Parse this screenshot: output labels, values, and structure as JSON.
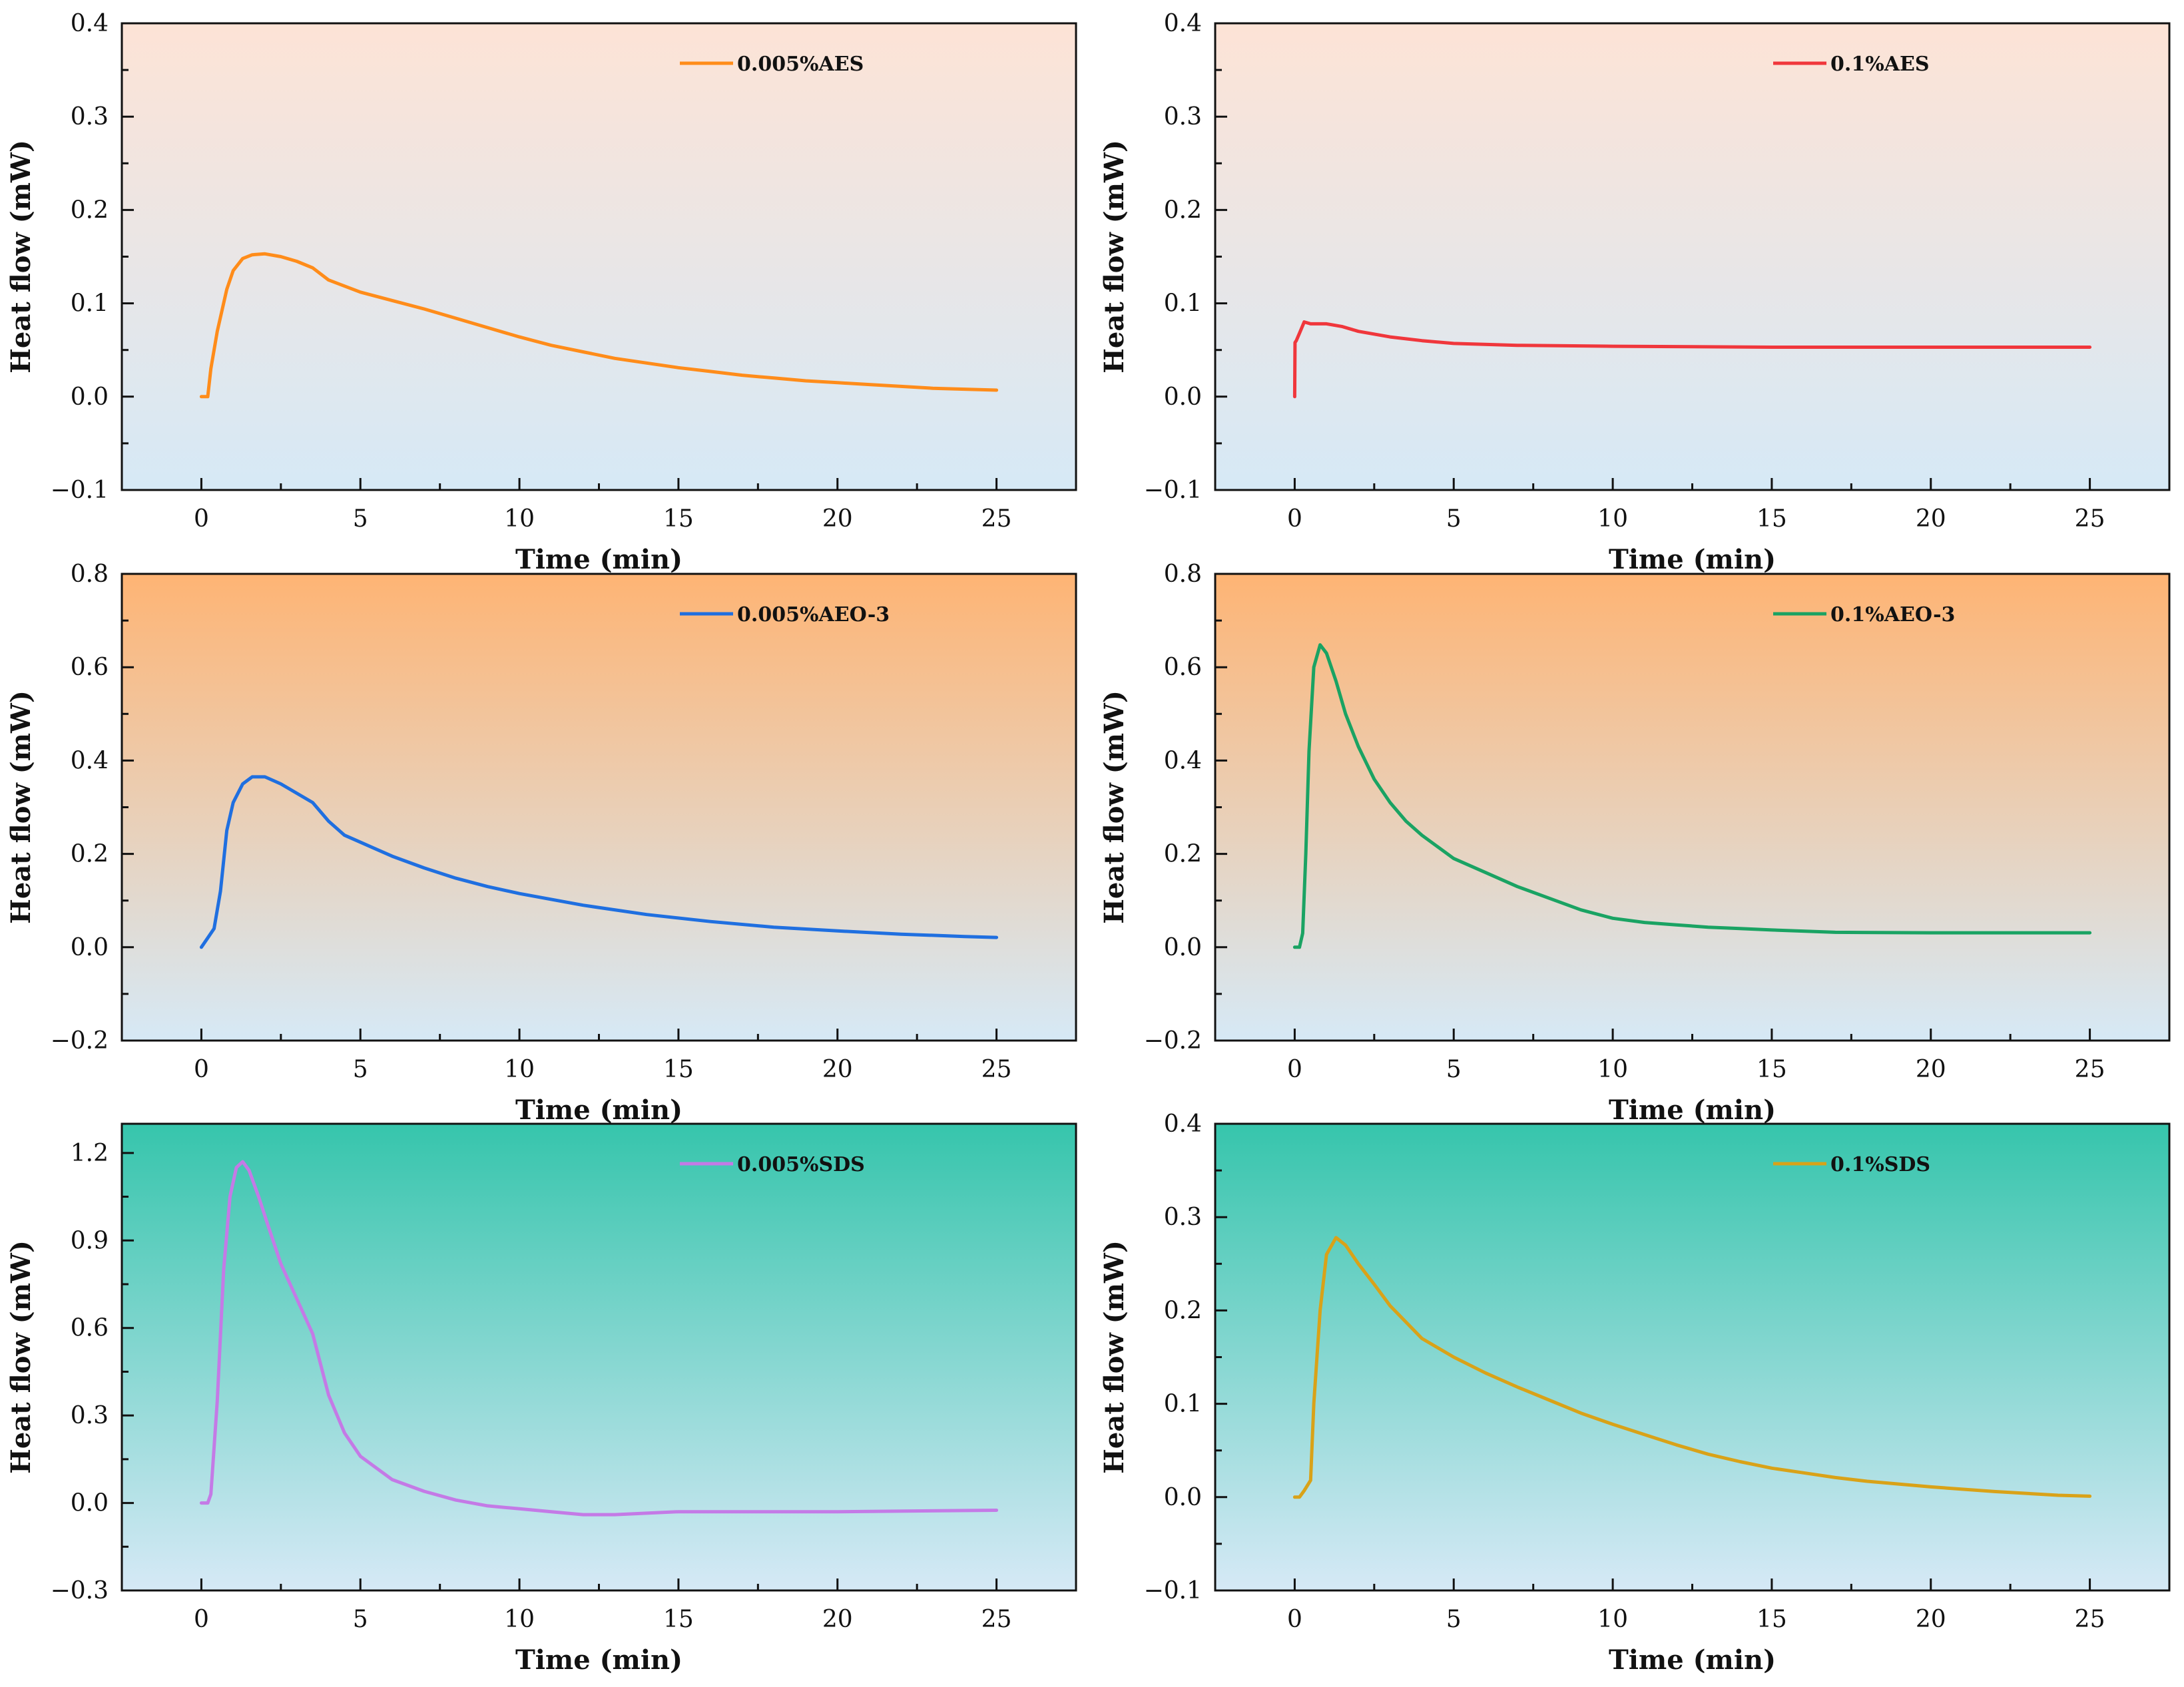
{
  "chart_data": [
    {
      "type": "line",
      "xlabel": "Time (min)",
      "ylabel": "Heat flow (mW)",
      "xlim": [
        -2.5,
        27.5
      ],
      "ylim": [
        -0.1,
        0.4
      ],
      "xticks": [
        0,
        5,
        10,
        15,
        20,
        25
      ],
      "yticks": [
        -0.1,
        0.0,
        0.1,
        0.2,
        0.3,
        0.4
      ],
      "ytick_labels": [
        "−0.1",
        "0.0",
        "0.1",
        "0.2",
        "0.3",
        "0.4"
      ],
      "background": {
        "top": "#fde3d6",
        "bottom": "#d6e9f6"
      },
      "legend_position": "top-right",
      "series": [
        {
          "name": "0.005%AES",
          "color": "#ff8c1a",
          "x": [
            0,
            0.2,
            0.3,
            0.5,
            0.8,
            1.0,
            1.3,
            1.6,
            2.0,
            2.5,
            3.0,
            3.5,
            4.0,
            5.0,
            6.0,
            7.0,
            8.0,
            9.0,
            10.0,
            11.0,
            12.0,
            13.0,
            14.0,
            15.0,
            16.0,
            17.0,
            18.0,
            19.0,
            20.0,
            21.0,
            22.0,
            23.0,
            24.0,
            25.0
          ],
          "y": [
            0.0,
            0.0,
            0.03,
            0.07,
            0.115,
            0.135,
            0.148,
            0.152,
            0.153,
            0.15,
            0.145,
            0.138,
            0.125,
            0.112,
            0.103,
            0.094,
            0.084,
            0.074,
            0.064,
            0.055,
            0.048,
            0.041,
            0.036,
            0.031,
            0.027,
            0.023,
            0.02,
            0.017,
            0.015,
            0.013,
            0.011,
            0.009,
            0.008,
            0.007
          ]
        }
      ]
    },
    {
      "type": "line",
      "xlabel": "Time (min)",
      "ylabel": "Heat flow (mW)",
      "xlim": [
        -2.5,
        27.5
      ],
      "ylim": [
        -0.1,
        0.4
      ],
      "xticks": [
        0,
        5,
        10,
        15,
        20,
        25
      ],
      "yticks": [
        -0.1,
        0.0,
        0.1,
        0.2,
        0.3,
        0.4
      ],
      "ytick_labels": [
        "−0.1",
        "0.0",
        "0.1",
        "0.2",
        "0.3",
        "0.4"
      ],
      "background": {
        "top": "#fde3d6",
        "bottom": "#d6e9f6"
      },
      "legend_position": "top-right",
      "series": [
        {
          "name": "0.1%AES",
          "color": "#f0373c",
          "x": [
            0,
            0.01,
            0.05,
            0.15,
            0.3,
            0.5,
            1.0,
            1.5,
            2.0,
            3.0,
            4.0,
            5.0,
            7.0,
            10.0,
            15.0,
            20.0,
            25.0
          ],
          "y": [
            0.0,
            0.058,
            0.06,
            0.068,
            0.08,
            0.078,
            0.078,
            0.075,
            0.07,
            0.064,
            0.06,
            0.057,
            0.055,
            0.054,
            0.053,
            0.053,
            0.053
          ]
        }
      ]
    },
    {
      "type": "line",
      "xlabel": "Time (min)",
      "ylabel": "Heat flow (mW)",
      "xlim": [
        -2.5,
        27.5
      ],
      "ylim": [
        -0.2,
        0.8
      ],
      "xticks": [
        0,
        5,
        10,
        15,
        20,
        25
      ],
      "yticks": [
        -0.2,
        0.0,
        0.2,
        0.4,
        0.6,
        0.8
      ],
      "ytick_labels": [
        "−0.2",
        "0.0",
        "0.2",
        "0.4",
        "0.6",
        "0.8"
      ],
      "background": {
        "top": "#feb474",
        "bottom": "#d6e9f6"
      },
      "legend_position": "top-right",
      "series": [
        {
          "name": "0.005%AEO-3",
          "color": "#1f6fe0",
          "x": [
            0,
            0.2,
            0.4,
            0.6,
            0.8,
            1.0,
            1.3,
            1.6,
            2.0,
            2.5,
            3.0,
            3.5,
            4.0,
            4.5,
            5.0,
            6.0,
            7.0,
            8.0,
            9.0,
            10.0,
            12.0,
            14.0,
            16.0,
            18.0,
            20.0,
            22.0,
            24.0,
            25.0
          ],
          "y": [
            0.0,
            0.02,
            0.04,
            0.12,
            0.25,
            0.31,
            0.35,
            0.365,
            0.365,
            0.35,
            0.33,
            0.31,
            0.27,
            0.24,
            0.225,
            0.195,
            0.17,
            0.148,
            0.13,
            0.115,
            0.09,
            0.07,
            0.055,
            0.043,
            0.035,
            0.028,
            0.023,
            0.021
          ]
        }
      ]
    },
    {
      "type": "line",
      "xlabel": "Time (min)",
      "ylabel": "Heat flow (mW)",
      "xlim": [
        -2.5,
        27.5
      ],
      "ylim": [
        -0.2,
        0.8
      ],
      "xticks": [
        0,
        5,
        10,
        15,
        20,
        25
      ],
      "yticks": [
        -0.2,
        0.0,
        0.2,
        0.4,
        0.6,
        0.8
      ],
      "ytick_labels": [
        "−0.2",
        "0.0",
        "0.2",
        "0.4",
        "0.6",
        "0.8"
      ],
      "background": {
        "top": "#feb474",
        "bottom": "#d6e9f6"
      },
      "legend_position": "top-right",
      "series": [
        {
          "name": "0.1%AEO-3",
          "color": "#1aa363",
          "x": [
            0,
            0.15,
            0.25,
            0.35,
            0.45,
            0.6,
            0.8,
            1.0,
            1.3,
            1.6,
            2.0,
            2.5,
            3.0,
            3.5,
            4.0,
            5.0,
            6.0,
            7.0,
            8.0,
            9.0,
            10.0,
            11.0,
            12.0,
            13.0,
            14.0,
            15.0,
            17.0,
            20.0,
            25.0
          ],
          "y": [
            0.0,
            0.0,
            0.03,
            0.2,
            0.42,
            0.6,
            0.648,
            0.63,
            0.57,
            0.5,
            0.43,
            0.36,
            0.31,
            0.27,
            0.24,
            0.19,
            0.16,
            0.13,
            0.105,
            0.08,
            0.062,
            0.053,
            0.048,
            0.043,
            0.04,
            0.037,
            0.032,
            0.031,
            0.031
          ]
        }
      ]
    },
    {
      "type": "line",
      "xlabel": "Time (min)",
      "ylabel": "Heat flow (mW)",
      "xlim": [
        -2.5,
        27.5
      ],
      "ylim": [
        -0.3,
        1.3
      ],
      "xticks": [
        0,
        5,
        10,
        15,
        20,
        25
      ],
      "yticks": [
        -0.3,
        0.0,
        0.3,
        0.6,
        0.9,
        1.2
      ],
      "ytick_labels": [
        "−0.3",
        "0.0",
        "0.3",
        "0.6",
        "0.9",
        "1.2"
      ],
      "background": {
        "top": "#36c5ac",
        "bottom": "#d6e9f6"
      },
      "legend_position": "top-right",
      "series": [
        {
          "name": "0.005%SDS",
          "color": "#c47ae6",
          "x": [
            0,
            0.2,
            0.3,
            0.5,
            0.7,
            0.9,
            1.1,
            1.3,
            1.5,
            1.8,
            2.1,
            2.5,
            3.0,
            3.5,
            4.0,
            4.5,
            5.0,
            6.0,
            7.0,
            8.0,
            9.0,
            10.0,
            11.0,
            12.0,
            13.0,
            14.0,
            15.0,
            17.0,
            20.0,
            25.0
          ],
          "y": [
            0.0,
            0.0,
            0.03,
            0.35,
            0.8,
            1.05,
            1.15,
            1.17,
            1.14,
            1.05,
            0.95,
            0.82,
            0.7,
            0.58,
            0.37,
            0.24,
            0.16,
            0.08,
            0.04,
            0.01,
            -0.01,
            -0.02,
            -0.03,
            -0.04,
            -0.04,
            -0.035,
            -0.03,
            -0.03,
            -0.03,
            -0.025
          ]
        }
      ]
    },
    {
      "type": "line",
      "xlabel": "Time (min)",
      "ylabel": "Heat flow (mW)",
      "xlim": [
        -2.5,
        27.5
      ],
      "ylim": [
        -0.1,
        0.4
      ],
      "xticks": [
        0,
        5,
        10,
        15,
        20,
        25
      ],
      "yticks": [
        -0.1,
        0.0,
        0.1,
        0.2,
        0.3,
        0.4
      ],
      "ytick_labels": [
        "−0.1",
        "0.0",
        "0.1",
        "0.2",
        "0.3",
        "0.4"
      ],
      "background": {
        "top": "#36c5ac",
        "bottom": "#d6e9f6"
      },
      "legend_position": "top-right",
      "series": [
        {
          "name": "0.1%SDS",
          "color": "#d9a218",
          "x": [
            0,
            0.15,
            0.3,
            0.5,
            0.6,
            0.8,
            1.0,
            1.3,
            1.6,
            2.0,
            2.5,
            3.0,
            4.0,
            5.0,
            6.0,
            7.0,
            8.0,
            9.0,
            10.0,
            11.0,
            12.0,
            13.0,
            14.0,
            15.0,
            16.0,
            17.0,
            18.0,
            20.0,
            22.0,
            24.0,
            25.0
          ],
          "y": [
            0.0,
            0.0,
            0.007,
            0.018,
            0.1,
            0.2,
            0.26,
            0.278,
            0.27,
            0.25,
            0.228,
            0.205,
            0.17,
            0.15,
            0.133,
            0.118,
            0.104,
            0.09,
            0.078,
            0.067,
            0.056,
            0.046,
            0.038,
            0.031,
            0.026,
            0.021,
            0.017,
            0.011,
            0.006,
            0.002,
            0.001
          ]
        }
      ]
    }
  ]
}
